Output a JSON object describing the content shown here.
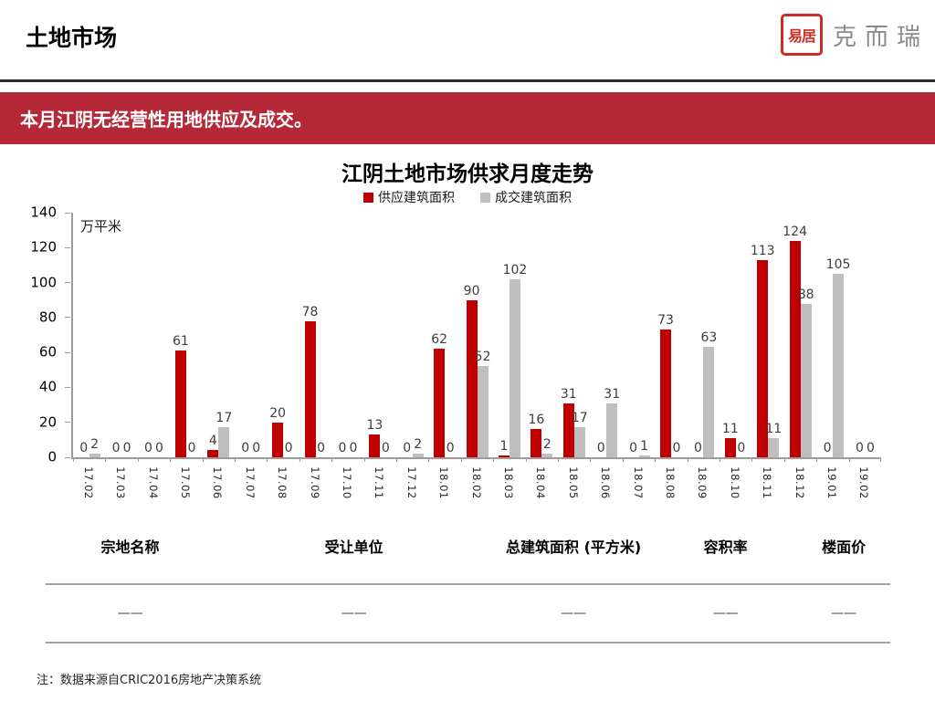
{
  "header": {
    "title": "土地市场",
    "logo": {
      "seal_text": "易居",
      "brand_text": "克而瑞"
    }
  },
  "banner": {
    "text": "本月江阴无经营性用地供应及成交。"
  },
  "chart_data": {
    "type": "bar",
    "title": "江阴土地市场供求月度走势",
    "unit_label": "万平米",
    "categories": [
      "17.02",
      "17.03",
      "17.04",
      "17.05",
      "17.06",
      "17.07",
      "17.08",
      "17.09",
      "17.10",
      "17.11",
      "17.12",
      "18.01",
      "18.02",
      "18.03",
      "18.04",
      "18.05",
      "18.06",
      "18.07",
      "18.08",
      "18.09",
      "18.10",
      "18.11",
      "18.12",
      "19.01",
      "19.02"
    ],
    "series": [
      {
        "name": "供应建筑面积",
        "color": "#c00000",
        "values": [
          0,
          0,
          0,
          61,
          4,
          0,
          20,
          78,
          0,
          13,
          0,
          62,
          90,
          1,
          16,
          31,
          0,
          0,
          73,
          0,
          11,
          113,
          124,
          0,
          0
        ]
      },
      {
        "name": "成交建筑面积",
        "color": "#bfbfbf",
        "values": [
          2,
          0,
          0,
          0,
          17,
          0,
          0,
          0,
          0,
          0,
          2,
          0,
          52,
          102,
          2,
          17,
          31,
          1,
          0,
          63,
          0,
          11,
          88,
          105,
          0
        ]
      }
    ],
    "ylim": [
      0,
      140
    ],
    "ytick_step": 20,
    "legend_position": "top",
    "grid": false
  },
  "table": {
    "headers": [
      "宗地名称",
      "受让单位",
      "总建筑面积 (平方米)",
      "容积率",
      "楼面价"
    ],
    "rows": [
      [
        "——",
        "——",
        "——",
        "——",
        "——"
      ]
    ]
  },
  "footer": {
    "note": "注：数据来源自CRIC2016房地产决策系统"
  },
  "colors": {
    "banner_red": "#b42838",
    "supply_red": "#c00000",
    "deal_gray": "#bfbfbf",
    "seal_red": "#ce2b24",
    "brand_gray": "#8b8b8b"
  }
}
